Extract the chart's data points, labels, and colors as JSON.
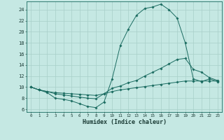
{
  "xlabel": "Humidex (Indice chaleur)",
  "bg_color": "#c5e8e3",
  "grid_color": "#a8cfc8",
  "line_color": "#1a6b60",
  "xlim": [
    -0.5,
    23.5
  ],
  "ylim": [
    5.5,
    25.5
  ],
  "xticks": [
    0,
    1,
    2,
    3,
    4,
    5,
    6,
    7,
    8,
    9,
    10,
    11,
    12,
    13,
    14,
    15,
    16,
    17,
    18,
    19,
    20,
    21,
    22,
    23
  ],
  "yticks": [
    6,
    8,
    10,
    12,
    14,
    16,
    18,
    20,
    22,
    24
  ],
  "line1_x": [
    0,
    1,
    2,
    3,
    4,
    5,
    6,
    7,
    8,
    9,
    10,
    11,
    12,
    13,
    14,
    15,
    16,
    17,
    18,
    19,
    20,
    21,
    22,
    23
  ],
  "line1_y": [
    10.0,
    9.5,
    9.0,
    8.0,
    7.8,
    7.5,
    7.0,
    6.5,
    6.3,
    7.3,
    11.5,
    17.5,
    20.5,
    23.0,
    24.2,
    24.5,
    25.0,
    24.0,
    22.5,
    18.0,
    11.5,
    11.0,
    11.5,
    11.0
  ],
  "line2_x": [
    0,
    1,
    2,
    3,
    4,
    5,
    6,
    7,
    8,
    9,
    10,
    11,
    12,
    13,
    14,
    15,
    16,
    17,
    18,
    19,
    20,
    21,
    22,
    23
  ],
  "line2_y": [
    10.0,
    9.5,
    9.2,
    8.8,
    8.6,
    8.4,
    8.2,
    8.0,
    7.9,
    8.8,
    9.8,
    10.2,
    10.8,
    11.2,
    12.0,
    12.7,
    13.4,
    14.2,
    15.0,
    15.2,
    13.2,
    12.7,
    11.7,
    11.2
  ],
  "line3_x": [
    0,
    1,
    2,
    3,
    4,
    5,
    6,
    7,
    8,
    9,
    10,
    11,
    12,
    13,
    14,
    15,
    16,
    17,
    18,
    19,
    20,
    21,
    22,
    23
  ],
  "line3_y": [
    10.0,
    9.5,
    9.2,
    9.0,
    8.9,
    8.8,
    8.7,
    8.6,
    8.5,
    8.8,
    9.2,
    9.5,
    9.7,
    9.9,
    10.1,
    10.3,
    10.5,
    10.7,
    10.9,
    11.1,
    11.1,
    11.1,
    11.1,
    11.1
  ]
}
